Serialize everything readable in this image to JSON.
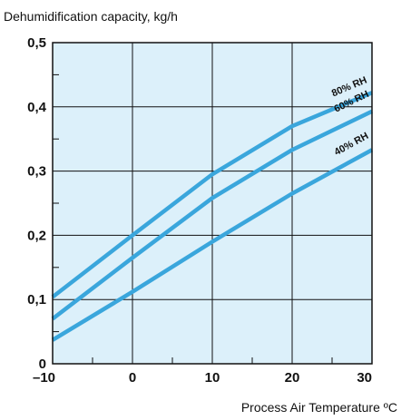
{
  "chart_data": {
    "type": "line",
    "ylabel": "Dehumidification capacity, kg/h",
    "xlabel": "Process Air Temperature ºC",
    "xlim": [
      -10,
      30
    ],
    "ylim": [
      0,
      0.5
    ],
    "x_ticks": [
      -10,
      0,
      10,
      20,
      30
    ],
    "x_tick_labels": [
      "–10",
      "0",
      "10",
      "20",
      "30"
    ],
    "y_ticks": [
      0,
      0.1,
      0.2,
      0.3,
      0.4,
      0.5
    ],
    "y_tick_labels": [
      "0",
      "0,1",
      "0,2",
      "0,3",
      "0,4",
      "0,5"
    ],
    "grid": true,
    "colors": {
      "plot_background": "#dcf0fa",
      "line": "#3aa6dc",
      "grid": "#111111"
    },
    "series": [
      {
        "name": "80% RH",
        "x": [
          -10,
          0,
          10,
          20,
          30
        ],
        "y": [
          0.104,
          0.2,
          0.295,
          0.37,
          0.422
        ]
      },
      {
        "name": "60% RH",
        "x": [
          -10,
          0,
          10,
          20,
          30
        ],
        "y": [
          0.07,
          0.165,
          0.258,
          0.333,
          0.393
        ]
      },
      {
        "name": "40% RH",
        "x": [
          -10,
          0,
          10,
          20,
          30
        ],
        "y": [
          0.037,
          0.112,
          0.19,
          0.265,
          0.333
        ]
      }
    ]
  }
}
